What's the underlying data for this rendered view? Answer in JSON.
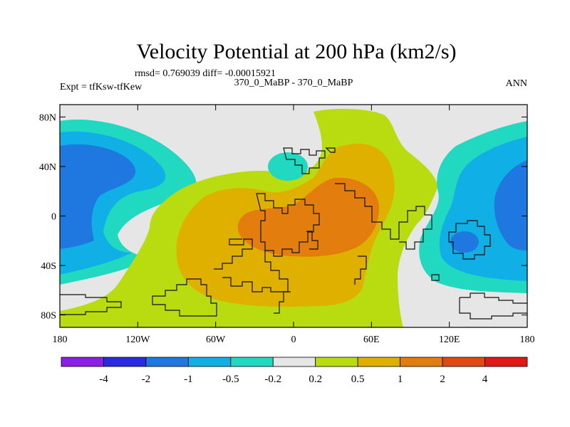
{
  "chart_data": {
    "type": "heatmap",
    "title": "Velocity Potential at 200 hPa (km2/s)",
    "stats": "rmsd= 0.769039 diff= -0.00015921",
    "left_label": "Expt = tfKsw-tfKew",
    "center_label": "370_0_MaBP - 370_0_MaBP",
    "right_label": "ANN",
    "x_ticks": [
      "180",
      "120W",
      "60W",
      "0",
      "60E",
      "120E",
      "180"
    ],
    "x_tick_values": [
      -180,
      -120,
      -60,
      0,
      60,
      120,
      180
    ],
    "y_ticks": [
      "80N",
      "40N",
      "0",
      "40S",
      "80S"
    ],
    "y_tick_values": [
      80,
      40,
      0,
      -40,
      -80
    ],
    "xlim": [
      -180,
      180
    ],
    "ylim": [
      -90,
      90
    ],
    "colorbar": {
      "labels": [
        "-4",
        "-2",
        "-1",
        "-0.5",
        "-0.2",
        "0.2",
        "0.5",
        "1",
        "2",
        "4"
      ],
      "colors": [
        "#8a1fe6",
        "#2a2ae0",
        "#1e78e0",
        "#10b0e6",
        "#20d9c0",
        "#e6e6e6",
        "#b9dc10",
        "#e0b000",
        "#e27d0e",
        "#e04a10",
        "#e01818"
      ]
    },
    "regions": [
      {
        "level": "-0.5 to -0.2",
        "color": "#20d9c0",
        "description": "western Pacific / Americas band"
      },
      {
        "level": "-1 to -0.5",
        "color": "#10b0e6",
        "description": "North and South Pacific"
      },
      {
        "level": "-2 to -1",
        "color": "#1e78e0",
        "description": "Pacific centers"
      },
      {
        "level": "0.2 to 0.5",
        "color": "#b9dc10",
        "description": "Atlantic / Africa broad positive"
      },
      {
        "level": "0.5 to 1",
        "color": "#e0b000",
        "description": "Africa / Indian Ocean"
      },
      {
        "level": "1 to 2",
        "color": "#e27d0e",
        "description": "equatorial Africa maximum"
      }
    ]
  }
}
